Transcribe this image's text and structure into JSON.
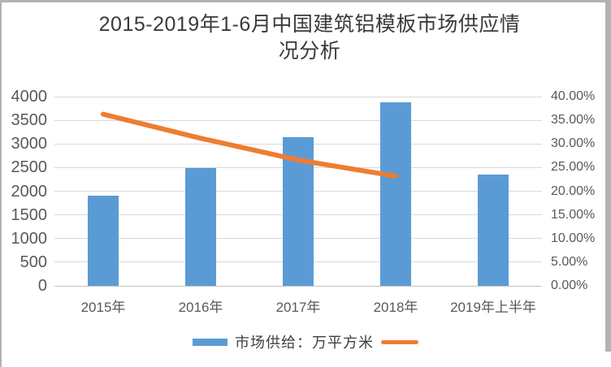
{
  "title": "2015-2019年1-6月中国建筑铝模板市场供应情况分析",
  "title_lines": [
    "2015-2019年1-6月中国建筑铝模板市场供应情",
    "况分析"
  ],
  "legend": {
    "bar_label": "市场供给：万平方米",
    "line_label": ""
  },
  "colors": {
    "bar": "#5B9BD5",
    "line": "#ED7D31",
    "grid": "#D9D9D9",
    "axis_line": "#c3c3c3",
    "axis_text": "#595959",
    "title_text": "#3A3A3A"
  },
  "chart_data": {
    "type": "combo-bar-line",
    "title": "2015-2019年1-6月中国建筑铝模板市场供应情况分析",
    "categories": [
      "2015年",
      "2016年",
      "2017年",
      "2018年",
      "2019年上半年"
    ],
    "series": [
      {
        "name": "市场供给：万平方米",
        "type": "bar",
        "axis": "left",
        "values": [
          1900,
          2490,
          3140,
          3880,
          2350
        ]
      },
      {
        "name": "",
        "type": "line",
        "axis": "right",
        "values": [
          36.3,
          31.2,
          26.6,
          23.2,
          null
        ]
      }
    ],
    "left_axis": {
      "min": 0,
      "max": 4000,
      "step": 500,
      "tick_labels": [
        "0",
        "500",
        "1000",
        "1500",
        "2000",
        "2500",
        "3000",
        "3500",
        "4000"
      ]
    },
    "right_axis": {
      "min": 0,
      "max": 40,
      "step": 5,
      "tick_labels": [
        "0.00%",
        "5.00%",
        "10.00%",
        "15.00%",
        "20.00%",
        "25.00%",
        "30.00%",
        "35.00%",
        "40.00%"
      ]
    },
    "grid": true,
    "legend_position": "bottom"
  }
}
